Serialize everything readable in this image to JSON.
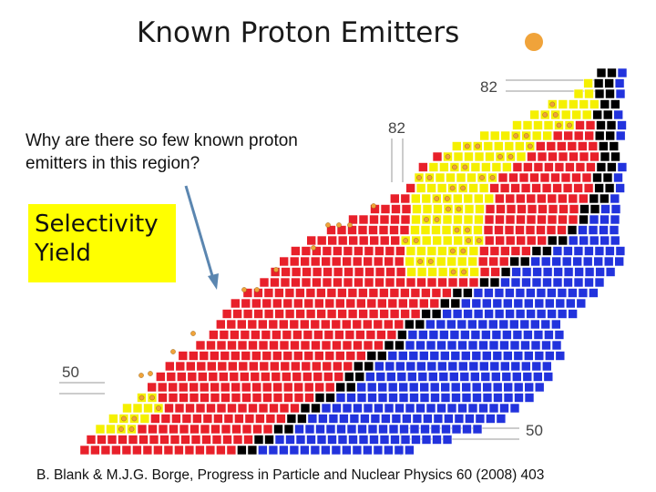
{
  "slide": {
    "title": "Known Proton Emitters",
    "question": "Why are there so few known proton emitters in this region?",
    "box_lines": [
      "Selectivity",
      "Yield"
    ],
    "citation": "B. Blank & M.J.G. Borge, Progress in Particle and Nuclear Physics 60 (2008) 403"
  },
  "chart": {
    "magic_numbers": {
      "z_top": "82",
      "n_top": "82",
      "z_left": "50",
      "n_bottom": "50"
    },
    "legend_colors": {
      "proton_rich": "#e8202a",
      "proton_emitter": "#f5f000",
      "stable": "#000000",
      "neutron_rich": "#2233dd",
      "emitter_dot": "#f0a33a"
    }
  }
}
